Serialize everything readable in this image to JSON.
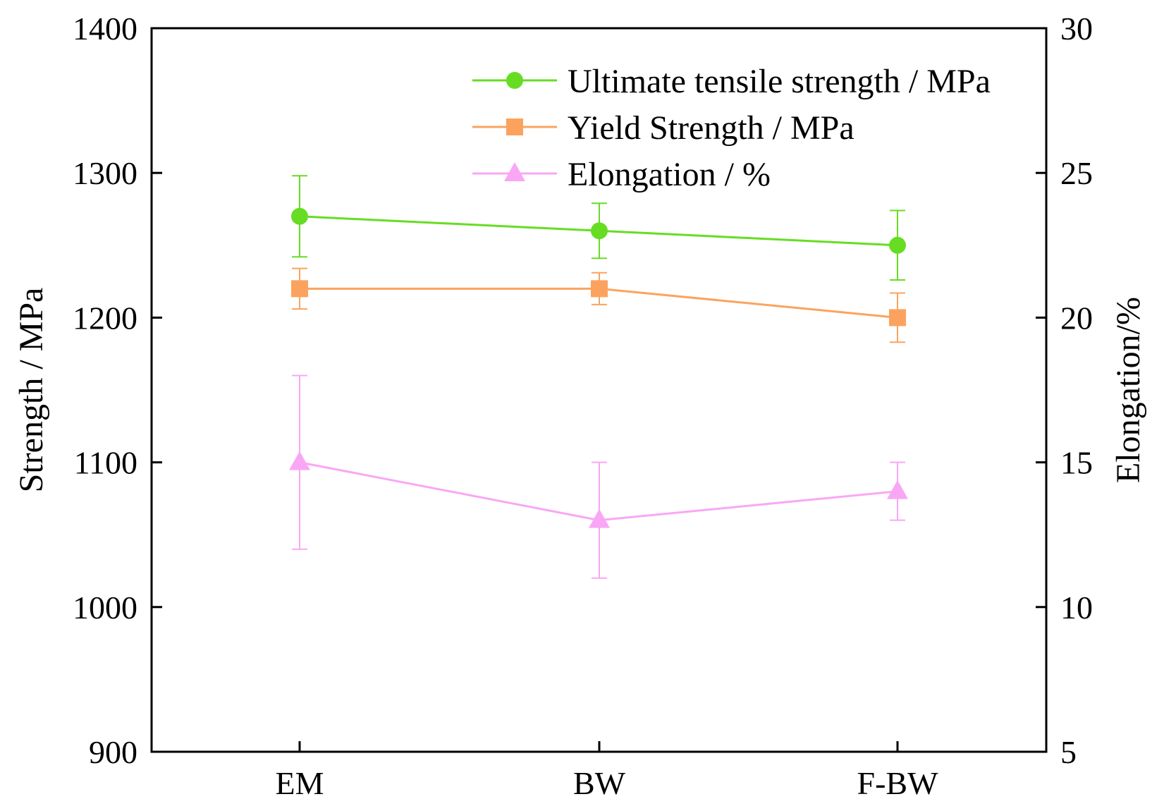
{
  "chart_data": {
    "type": "line",
    "categories": [
      "EM",
      "BW",
      "F-BW"
    ],
    "y_left": {
      "label": "Strength / MPa",
      "range": [
        900,
        1400
      ],
      "ticks": [
        "900",
        "1000",
        "1100",
        "1200",
        "1300",
        "1400"
      ]
    },
    "y_right": {
      "label": "Elongation/%",
      "range": [
        5,
        30
      ],
      "ticks": [
        "5",
        "10",
        "15",
        "20",
        "25",
        "30"
      ]
    },
    "series": [
      {
        "name": "Ultimate tensile strength / MPa",
        "axis": "left",
        "marker": "circle",
        "color": "#66DD22",
        "values": [
          1270,
          1260,
          1250
        ],
        "errors": [
          28,
          19,
          24
        ]
      },
      {
        "name": "Yield Strength / MPa",
        "axis": "left",
        "marker": "square",
        "color": "#FBA35E",
        "values": [
          1220,
          1220,
          1200
        ],
        "errors": [
          14,
          11,
          17
        ]
      },
      {
        "name": "Elongation / %",
        "axis": "right",
        "marker": "triangle",
        "color": "#F9A7F5",
        "values": [
          15,
          13,
          14
        ],
        "errors": [
          3,
          2,
          1
        ]
      }
    ],
    "legend_position": "top-right",
    "grid": false
  }
}
